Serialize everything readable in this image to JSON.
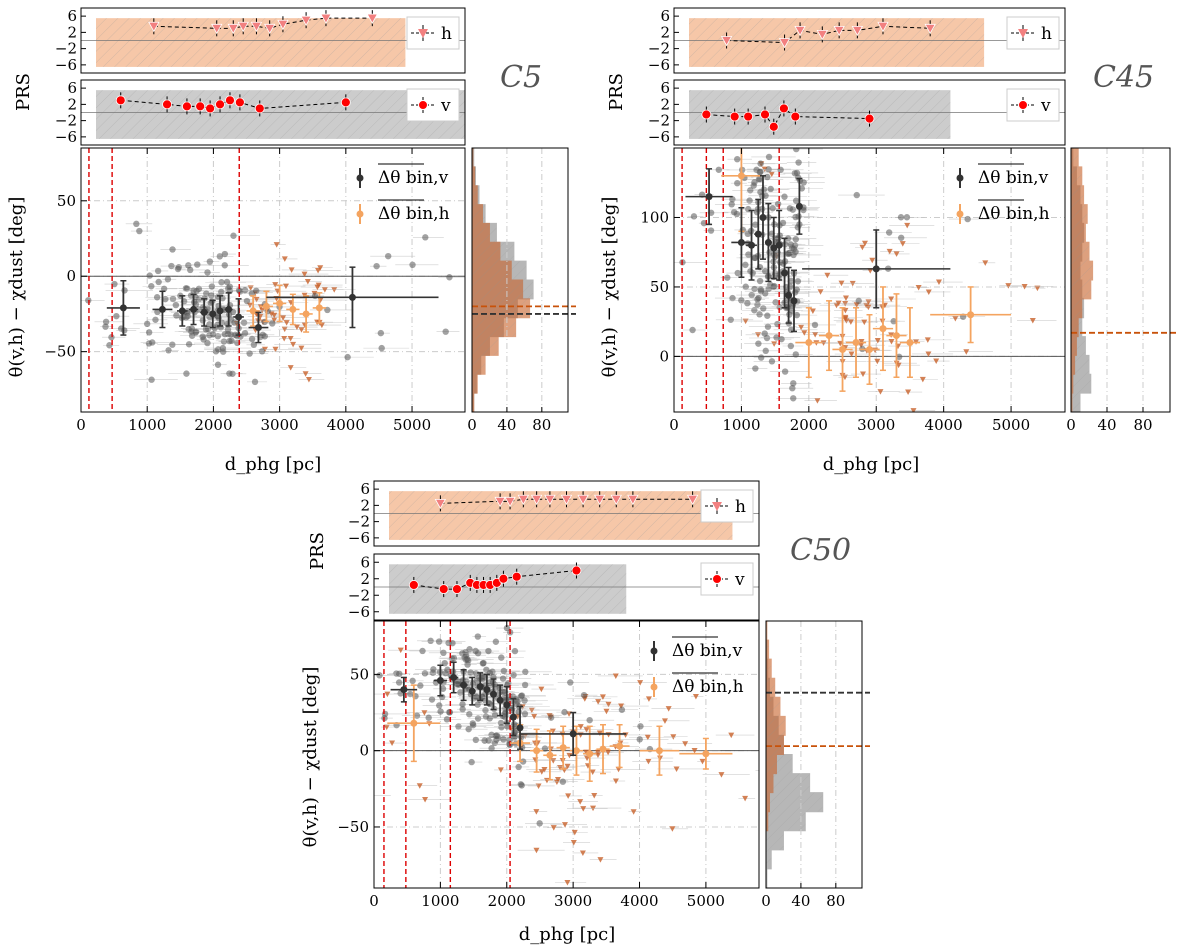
{
  "figure": {
    "x_label": "d_phg [pc]",
    "y_label": "θ(v,h) − χdust [deg]",
    "prs_label": "PRS",
    "legend_v": "Δθ bin,v",
    "legend_h": "Δθ bin,h",
    "prs_h_label": "h",
    "prs_v_label": "v",
    "prs_ticks": [
      6,
      2,
      -2,
      -6
    ],
    "x_ticks": [
      0,
      1000,
      2000,
      3000,
      4000,
      5000
    ],
    "hist_ticks": [
      0,
      40,
      80
    ],
    "colors": {
      "v": "#333333",
      "h": "#f4a460",
      "scatter_v": "#555555",
      "scatter_h": "#c8622a",
      "prs_marker": "#ff0000",
      "fill_h": "#f6c7a8",
      "fill_v": "#cccccc",
      "vline": "#dd0000"
    }
  },
  "chart_data": [
    {
      "type": "scatter",
      "title": "C5",
      "xlim": [
        0,
        5800
      ],
      "ylim": [
        -90,
        85
      ],
      "y_ticks": [
        50,
        0,
        -50
      ],
      "vlines": [
        120,
        470,
        2390
      ],
      "prs_h": {
        "x": [
          1100,
          2050,
          2300,
          2450,
          2650,
          2850,
          3050,
          3400,
          3700,
          4400
        ],
        "y": [
          3.5,
          3,
          3,
          3.5,
          3.5,
          3,
          4,
          5,
          5.5,
          5.5
        ]
      },
      "prs_v": {
        "x": [
          600,
          1300,
          1600,
          1800,
          1950,
          2100,
          2250,
          2400,
          2700,
          4000
        ],
        "y": [
          3,
          2,
          1.5,
          1.5,
          1,
          2,
          3,
          2.5,
          1,
          2.5
        ]
      },
      "binned_v": {
        "x": [
          640,
          1230,
          1530,
          1700,
          1860,
          1990,
          2100,
          2230,
          2380,
          2680,
          4100
        ],
        "y": [
          -21,
          -22,
          -23,
          -22,
          -24,
          -25,
          -23,
          -22,
          -27,
          -34,
          -14
        ],
        "xerr": [
          250,
          150,
          80,
          70,
          60,
          50,
          50,
          60,
          80,
          150,
          1300
        ],
        "yerr": [
          18,
          12,
          10,
          10,
          9,
          9,
          10,
          11,
          12,
          10,
          20
        ]
      },
      "binned_h": {
        "x": [
          2600,
          2800,
          3000,
          3200,
          3400,
          3600
        ],
        "y": [
          -23,
          -20,
          -18,
          -22,
          -25,
          -21
        ],
        "xerr": [
          100,
          100,
          100,
          100,
          100,
          100
        ],
        "yerr": [
          10,
          10,
          12,
          10,
          12,
          10
        ]
      },
      "hist_mean_v": -25,
      "hist_mean_h": -20,
      "hist_v_counts": [
        2,
        4,
        8,
        15,
        28,
        48,
        62,
        70,
        52,
        36,
        20,
        10,
        5,
        2
      ],
      "hist_h_counts": [
        1,
        3,
        6,
        12,
        20,
        32,
        45,
        58,
        66,
        50,
        30,
        15,
        6,
        2
      ]
    },
    {
      "type": "scatter",
      "title": "C45",
      "xlim": [
        0,
        5800
      ],
      "ylim": [
        -40,
        150
      ],
      "y_ticks": [
        100,
        50,
        0
      ],
      "vlines": [
        120,
        480,
        730,
        1560
      ],
      "prs_h": {
        "x": [
          780,
          1640,
          1870,
          2200,
          2450,
          2720,
          3100,
          3800
        ],
        "y": [
          0,
          -0.5,
          2.5,
          1.5,
          2.5,
          2.5,
          3.5,
          3
        ]
      },
      "prs_v": {
        "x": [
          480,
          900,
          1100,
          1350,
          1480,
          1630,
          1800,
          2900
        ],
        "y": [
          -0.5,
          -1,
          -1,
          -0.5,
          -3.5,
          1,
          -1,
          -1.5
        ]
      },
      "binned_v": {
        "x": [
          520,
          1000,
          1150,
          1250,
          1320,
          1400,
          1480,
          1560,
          1640,
          1700,
          1780,
          1860,
          3000
        ],
        "y": [
          115,
          82,
          80,
          88,
          100,
          82,
          78,
          80,
          60,
          44,
          40,
          108,
          63
        ],
        "xerr": [
          350,
          150,
          80,
          60,
          50,
          50,
          40,
          40,
          40,
          40,
          40,
          40,
          1100
        ],
        "yerr": [
          20,
          25,
          25,
          25,
          30,
          28,
          22,
          25,
          25,
          20,
          22,
          20,
          28
        ]
      },
      "binned_h": {
        "x": [
          1000,
          2000,
          2300,
          2500,
          2700,
          2900,
          3100,
          3300,
          3500,
          4400
        ],
        "y": [
          130,
          10,
          15,
          5,
          10,
          5,
          20,
          15,
          10,
          30
        ],
        "xerr": [
          300,
          200,
          150,
          150,
          150,
          150,
          150,
          150,
          150,
          600
        ],
        "yerr": [
          40,
          25,
          25,
          30,
          25,
          25,
          30,
          30,
          25,
          20
        ]
      },
      "hist_mean_v": null,
      "hist_mean_h": 17,
      "hist_v_counts": [
        2,
        6,
        10,
        12,
        14,
        12,
        10,
        12,
        14,
        12,
        16,
        20,
        22,
        10
      ],
      "hist_h_counts": [
        8,
        12,
        14,
        18,
        16,
        20,
        24,
        22,
        12,
        8,
        6,
        4,
        2,
        1
      ]
    },
    {
      "type": "scatter",
      "title": "C50",
      "xlim": [
        0,
        5800
      ],
      "ylim": [
        -90,
        85
      ],
      "y_ticks": [
        50,
        0,
        -50
      ],
      "vlines": [
        150,
        480,
        1150,
        2050
      ],
      "prs_h": {
        "x": [
          1000,
          1900,
          2050,
          2250,
          2450,
          2650,
          2900,
          3150,
          3400,
          3650,
          3900,
          4800
        ],
        "y": [
          2.5,
          3,
          3,
          3.5,
          3.5,
          3.5,
          3.5,
          3.5,
          3.5,
          3.5,
          3.5,
          3.5
        ]
      },
      "prs_v": {
        "x": [
          600,
          1050,
          1250,
          1450,
          1550,
          1650,
          1750,
          1850,
          1950,
          2150,
          3050
        ],
        "y": [
          0.5,
          -0.5,
          -0.5,
          1,
          0.5,
          0.5,
          0.5,
          1,
          2,
          2.5,
          4
        ]
      },
      "binned_v": {
        "x": [
          450,
          1000,
          1200,
          1350,
          1480,
          1600,
          1700,
          1800,
          1900,
          2000,
          2100,
          2200,
          3000
        ],
        "y": [
          40,
          46,
          48,
          43,
          39,
          42,
          40,
          37,
          33,
          30,
          22,
          15,
          11
        ],
        "xerr": [
          200,
          100,
          70,
          60,
          50,
          50,
          40,
          40,
          40,
          40,
          40,
          40,
          800
        ],
        "yerr": [
          8,
          10,
          10,
          10,
          9,
          9,
          10,
          10,
          10,
          12,
          12,
          14,
          14
        ]
      },
      "binned_h": {
        "x": [
          600,
          2200,
          2450,
          2650,
          2850,
          3050,
          3250,
          3450,
          3700,
          4300,
          5000
        ],
        "y": [
          18,
          5,
          0,
          -3,
          2,
          0,
          -2,
          1,
          3,
          0,
          -2
        ],
        "xerr": [
          400,
          150,
          100,
          100,
          100,
          100,
          100,
          100,
          150,
          300,
          400
        ],
        "yerr": [
          25,
          12,
          14,
          16,
          14,
          16,
          18,
          16,
          14,
          16,
          10
        ]
      },
      "hist_mean_v": 38,
      "hist_mean_h": 3,
      "hist_v_counts": [
        0,
        1,
        2,
        4,
        8,
        14,
        20,
        30,
        50,
        65,
        45,
        20,
        6,
        1
      ],
      "hist_h_counts": [
        1,
        3,
        6,
        10,
        16,
        22,
        20,
        12,
        8,
        4,
        2,
        0,
        0,
        0
      ]
    }
  ]
}
